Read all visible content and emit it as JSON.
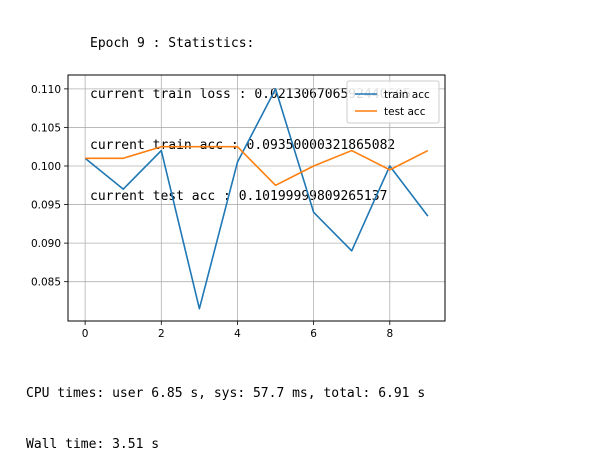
{
  "output": {
    "header_lines": [
      "Epoch 9 : Statistics:",
      "current train loss : 0.021306706592440605",
      "current train acc : 0.09350000321865082",
      "current test acc : 0.10199999809265137"
    ],
    "footer_lines": [
      "CPU times: user 6.85 s, sys: 57.7 ms, total: 6.91 s",
      "Wall time: 3.51 s"
    ]
  },
  "chart_data": {
    "type": "line",
    "title": "",
    "xlabel": "",
    "ylabel": "",
    "x": [
      0,
      1,
      2,
      3,
      4,
      5,
      6,
      7,
      8,
      9
    ],
    "series": [
      {
        "name": "train acc",
        "color": "#1f77b4",
        "values": [
          0.101,
          0.097,
          0.102,
          0.0815,
          0.1005,
          0.11,
          0.094,
          0.089,
          0.1,
          0.0935
        ]
      },
      {
        "name": "test acc",
        "color": "#ff7f0e",
        "values": [
          0.101,
          0.101,
          0.1025,
          0.1025,
          0.1025,
          0.0975,
          0.1,
          0.102,
          0.0995,
          0.102
        ]
      }
    ],
    "xlim": [
      -0.45,
      9.45
    ],
    "ylim": [
      0.0799,
      0.1118
    ],
    "xticks": [
      0,
      2,
      4,
      6,
      8
    ],
    "xtick_labels": [
      "0",
      "2",
      "4",
      "6",
      "8"
    ],
    "yticks": [
      0.085,
      0.09,
      0.095,
      0.1,
      0.105,
      0.11
    ],
    "ytick_labels": [
      "0.085",
      "0.090",
      "0.095",
      "0.100",
      "0.105",
      "0.110"
    ],
    "grid": true,
    "legend_position": "top-right"
  }
}
